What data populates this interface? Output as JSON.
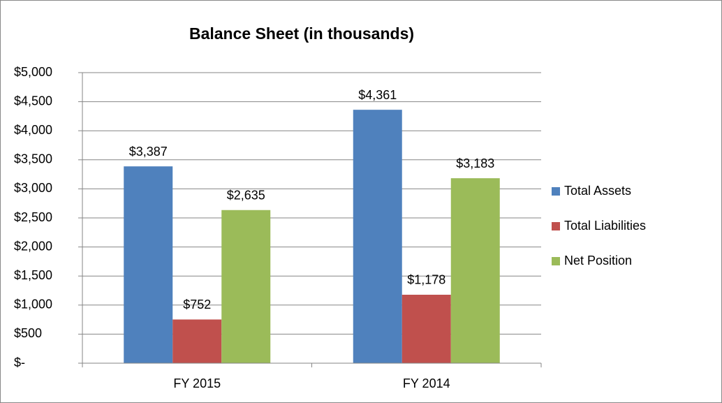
{
  "chart_data": {
    "type": "bar",
    "title": "Balance Sheet (in thousands)",
    "categories": [
      "FY 2015",
      "FY 2014"
    ],
    "series": [
      {
        "name": "Total Assets",
        "color": "#4f81bd",
        "values": [
          3387,
          4361
        ],
        "value_labels": [
          "$3,387",
          "$4,361"
        ]
      },
      {
        "name": "Total Liabilities",
        "color": "#c0504d",
        "values": [
          752,
          1178
        ],
        "value_labels": [
          "$752",
          "$1,178"
        ]
      },
      {
        "name": "Net Position",
        "color": "#9bbb59",
        "values": [
          2635,
          3183
        ],
        "value_labels": [
          "$2,635",
          "$3,183"
        ]
      }
    ],
    "ylim": [
      0,
      5000
    ],
    "yticks": [
      {
        "value": 0,
        "label": "$-"
      },
      {
        "value": 500,
        "label": "$500"
      },
      {
        "value": 1000,
        "label": "$1,000"
      },
      {
        "value": 1500,
        "label": "$1,500"
      },
      {
        "value": 2000,
        "label": "$2,000"
      },
      {
        "value": 2500,
        "label": "$2,500"
      },
      {
        "value": 3000,
        "label": "$3,000"
      },
      {
        "value": 3500,
        "label": "$3,500"
      },
      {
        "value": 4000,
        "label": "$4,000"
      },
      {
        "value": 4500,
        "label": "$4,500"
      },
      {
        "value": 5000,
        "label": "$5,000"
      }
    ],
    "grid": true,
    "legend": "right"
  }
}
